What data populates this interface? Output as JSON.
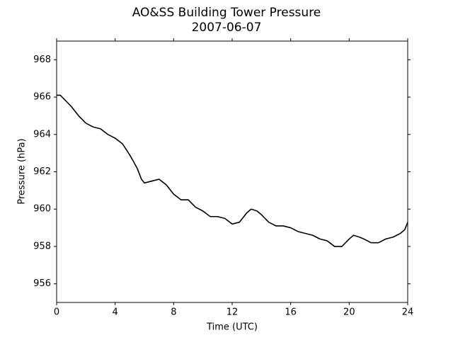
{
  "chart_data": {
    "type": "line",
    "title": "AO&SS Building Tower Pressure",
    "subtitle": "2007-06-07",
    "x_label": "Time (UTC)",
    "y_label": "Pressure (hPa)",
    "xlim": [
      0,
      24
    ],
    "xticks": [
      0,
      4,
      8,
      12,
      16,
      20,
      24
    ],
    "ylim": [
      955,
      969
    ],
    "yticks": [
      956,
      958,
      960,
      962,
      964,
      966,
      968
    ],
    "grid": false,
    "series": [
      {
        "name": "Pressure",
        "color": "#000000",
        "x": [
          0,
          0.25,
          0.5,
          1,
          1.5,
          2,
          2.5,
          3,
          3.5,
          4,
          4.5,
          5,
          5.5,
          5.8,
          6,
          6.5,
          7,
          7.5,
          8,
          8.5,
          9,
          9.5,
          10,
          10.5,
          11,
          11.5,
          12,
          12.5,
          13,
          13.3,
          13.7,
          14,
          14.5,
          15,
          15.5,
          16,
          16.5,
          17,
          17.5,
          18,
          18.5,
          19,
          19.5,
          20,
          20.3,
          20.7,
          21,
          21.5,
          22,
          22.5,
          23,
          23.5,
          23.8,
          24
        ],
        "values": [
          966.1,
          966.1,
          965.9,
          965.5,
          965.0,
          964.6,
          964.4,
          964.3,
          964.0,
          963.8,
          963.5,
          962.9,
          962.2,
          961.6,
          961.4,
          961.5,
          961.6,
          961.3,
          960.8,
          960.5,
          960.5,
          960.1,
          959.9,
          959.6,
          959.6,
          959.5,
          959.2,
          959.3,
          959.8,
          960.0,
          959.9,
          959.7,
          959.3,
          959.1,
          959.1,
          959.0,
          958.8,
          958.7,
          958.6,
          958.4,
          958.3,
          958.0,
          958.0,
          958.4,
          958.6,
          958.5,
          958.4,
          958.2,
          958.2,
          958.4,
          958.5,
          958.7,
          958.9,
          959.3
        ]
      }
    ]
  }
}
